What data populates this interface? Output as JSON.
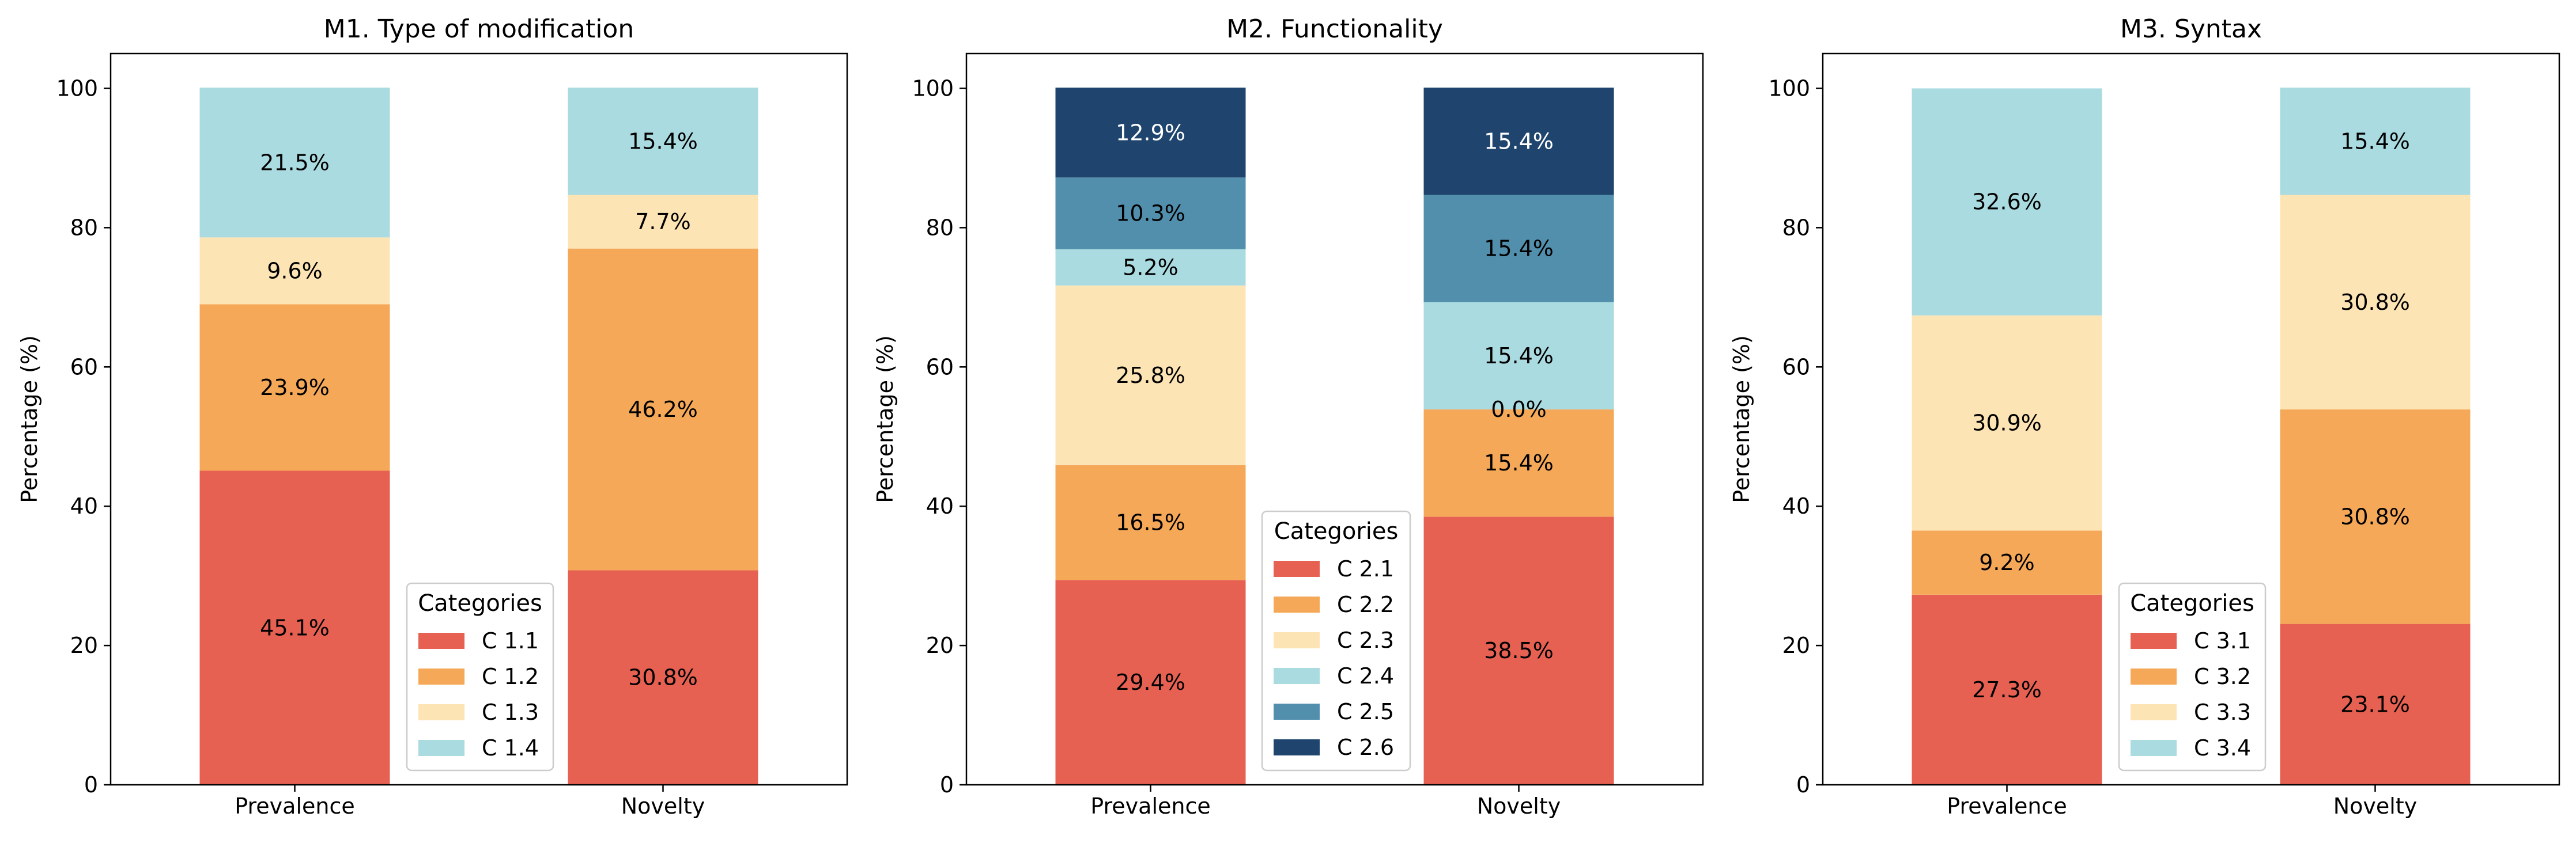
{
  "colors": {
    "C1": "#e76153",
    "C2": "#f5a958",
    "C3": "#fde4b5",
    "C4": "#aadbe0",
    "C5": "#528fad",
    "C6": "#1f456e"
  },
  "chart_data": [
    {
      "type": "bar",
      "stacked": true,
      "title": "M1. Type of modification",
      "xlabel": "",
      "ylabel": "Percentage (%)",
      "categories": [
        "Prevalence",
        "Novelty"
      ],
      "ylim": [
        0,
        105
      ],
      "yticks": [
        "0",
        "20",
        "40",
        "60",
        "80",
        "100"
      ],
      "legend": {
        "title": "Categories",
        "position": "lower-center"
      },
      "series": [
        {
          "name": "C 1.1",
          "values": [
            45.1,
            30.8
          ],
          "labels": [
            "45.1%",
            "30.8%"
          ],
          "color": "#e76153"
        },
        {
          "name": "C 1.2",
          "values": [
            23.9,
            46.2
          ],
          "labels": [
            "23.9%",
            "46.2%"
          ],
          "color": "#f5a958"
        },
        {
          "name": "C 1.3",
          "values": [
            9.6,
            7.7
          ],
          "labels": [
            "9.6%",
            "7.7%"
          ],
          "color": "#fde4b5"
        },
        {
          "name": "C 1.4",
          "values": [
            21.5,
            15.4
          ],
          "labels": [
            "21.5%",
            "15.4%"
          ],
          "color": "#aadbe0"
        }
      ]
    },
    {
      "type": "bar",
      "stacked": true,
      "title": "M2. Functionality",
      "xlabel": "",
      "ylabel": "Percentage (%)",
      "categories": [
        "Prevalence",
        "Novelty"
      ],
      "ylim": [
        0,
        105
      ],
      "yticks": [
        "0",
        "20",
        "40",
        "60",
        "80",
        "100"
      ],
      "legend": {
        "title": "Categories",
        "position": "lower-center"
      },
      "series": [
        {
          "name": "C 2.1",
          "values": [
            29.4,
            38.5
          ],
          "labels": [
            "29.4%",
            "38.5%"
          ],
          "color": "#e76153"
        },
        {
          "name": "C 2.2",
          "values": [
            16.5,
            15.4
          ],
          "labels": [
            "16.5%",
            "15.4%"
          ],
          "color": "#f5a958"
        },
        {
          "name": "C 2.3",
          "values": [
            25.8,
            0.0
          ],
          "labels": [
            "25.8%",
            "0.0%"
          ],
          "color": "#fde4b5"
        },
        {
          "name": "C 2.4",
          "values": [
            5.2,
            15.4
          ],
          "labels": [
            "5.2%",
            "15.4%"
          ],
          "color": "#aadbe0"
        },
        {
          "name": "C 2.5",
          "values": [
            10.3,
            15.4
          ],
          "labels": [
            "10.3%",
            "15.4%"
          ],
          "color": "#528fad"
        },
        {
          "name": "C 2.6",
          "values": [
            12.9,
            15.4
          ],
          "labels": [
            "12.9%",
            "15.4%"
          ],
          "color": "#1f456e"
        }
      ]
    },
    {
      "type": "bar",
      "stacked": true,
      "title": "M3. Syntax",
      "xlabel": "",
      "ylabel": "Percentage (%)",
      "categories": [
        "Prevalence",
        "Novelty"
      ],
      "ylim": [
        0,
        105
      ],
      "yticks": [
        "0",
        "20",
        "40",
        "60",
        "80",
        "100"
      ],
      "legend": {
        "title": "Categories",
        "position": "lower-center"
      },
      "series": [
        {
          "name": "C 3.1",
          "values": [
            27.3,
            23.1
          ],
          "labels": [
            "27.3%",
            "23.1%"
          ],
          "color": "#e76153"
        },
        {
          "name": "C 3.2",
          "values": [
            9.2,
            30.8
          ],
          "labels": [
            "9.2%",
            "30.8%"
          ],
          "color": "#f5a958"
        },
        {
          "name": "C 3.3",
          "values": [
            30.9,
            30.8
          ],
          "labels": [
            "30.9%",
            "30.8%"
          ],
          "color": "#fde4b5"
        },
        {
          "name": "C 3.4",
          "values": [
            32.6,
            15.4
          ],
          "labels": [
            "32.6%",
            "15.4%"
          ],
          "color": "#aadbe0"
        }
      ]
    }
  ]
}
